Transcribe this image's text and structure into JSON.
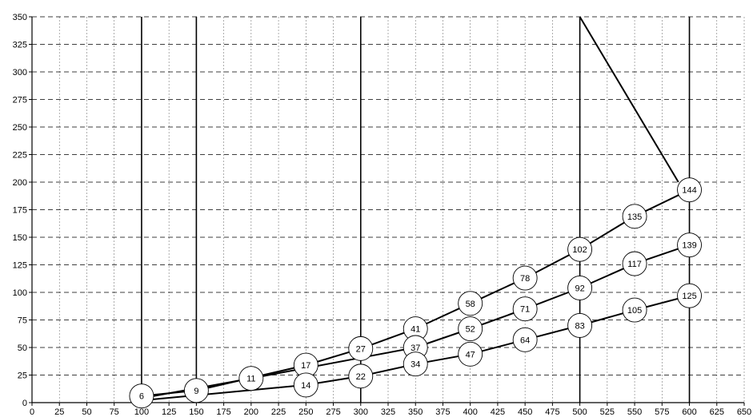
{
  "chart_data": {
    "type": "line",
    "title": "",
    "xlabel": "",
    "ylabel": "",
    "xlim": [
      0,
      650
    ],
    "ylim": [
      0,
      350
    ],
    "x_ticks": [
      0,
      25,
      50,
      75,
      100,
      125,
      150,
      175,
      200,
      225,
      250,
      275,
      300,
      325,
      350,
      375,
      400,
      425,
      450,
      475,
      500,
      525,
      550,
      575,
      600,
      625,
      650
    ],
    "y_ticks": [
      0,
      25,
      50,
      75,
      100,
      125,
      150,
      175,
      200,
      225,
      250,
      275,
      300,
      325,
      350
    ],
    "vertical_lines": [
      100,
      150,
      300,
      500,
      600
    ],
    "grid": true,
    "legend": "none",
    "colors": {
      "line": "#000000",
      "bubble_fill": "#ffffff",
      "grid_major": "#000000",
      "grid_minor": "#777777"
    },
    "series": [
      {
        "points": [
          {
            "x": 100,
            "y": 6,
            "label": "6"
          },
          {
            "x": 150,
            "y": 11,
            "label": "9"
          },
          {
            "x": 250,
            "y": 34,
            "label": "17"
          },
          {
            "x": 300,
            "y": 49,
            "label": "27"
          },
          {
            "x": 350,
            "y": 67,
            "label": "41"
          },
          {
            "x": 400,
            "y": 90,
            "label": "58"
          },
          {
            "x": 450,
            "y": 113,
            "label": "78"
          },
          {
            "x": 500,
            "y": 139,
            "label": "102"
          },
          {
            "x": 550,
            "y": 169,
            "label": "135"
          },
          {
            "x": 600,
            "y": 193,
            "label": "144"
          }
        ]
      },
      {
        "points": [
          {
            "x": 100,
            "y": 4,
            "label": "6"
          },
          {
            "x": 200,
            "y": 22,
            "label": "11"
          },
          {
            "x": 350,
            "y": 50,
            "label": "37"
          },
          {
            "x": 400,
            "y": 67,
            "label": "52"
          },
          {
            "x": 450,
            "y": 85,
            "label": "71"
          },
          {
            "x": 500,
            "y": 104,
            "label": "92"
          },
          {
            "x": 550,
            "y": 126,
            "label": "117"
          },
          {
            "x": 600,
            "y": 143,
            "label": "139"
          }
        ]
      },
      {
        "points": [
          {
            "x": 100,
            "y": 2,
            "label": "6"
          },
          {
            "x": 250,
            "y": 16,
            "label": "14"
          },
          {
            "x": 300,
            "y": 24,
            "label": "22"
          },
          {
            "x": 350,
            "y": 35,
            "label": "34"
          },
          {
            "x": 400,
            "y": 44,
            "label": "47"
          },
          {
            "x": 450,
            "y": 57,
            "label": "64"
          },
          {
            "x": 500,
            "y": 70,
            "label": "83"
          },
          {
            "x": 550,
            "y": 84,
            "label": "105"
          },
          {
            "x": 600,
            "y": 97,
            "label": "125"
          }
        ]
      },
      {
        "points": [
          {
            "x": 500,
            "y": 350
          },
          {
            "x": 590,
            "y": 200
          }
        ]
      }
    ],
    "bubbles": [
      {
        "x": 100,
        "y": 6,
        "label": "6"
      },
      {
        "x": 150,
        "y": 11,
        "label": "9"
      },
      {
        "x": 200,
        "y": 22,
        "label": "11"
      },
      {
        "x": 250,
        "y": 34,
        "label": "17"
      },
      {
        "x": 250,
        "y": 16,
        "label": "14"
      },
      {
        "x": 300,
        "y": 49,
        "label": "27"
      },
      {
        "x": 300,
        "y": 24,
        "label": "22"
      },
      {
        "x": 350,
        "y": 67,
        "label": "41"
      },
      {
        "x": 350,
        "y": 50,
        "label": "37"
      },
      {
        "x": 350,
        "y": 35,
        "label": "34"
      },
      {
        "x": 400,
        "y": 90,
        "label": "58"
      },
      {
        "x": 400,
        "y": 67,
        "label": "52"
      },
      {
        "x": 400,
        "y": 44,
        "label": "47"
      },
      {
        "x": 450,
        "y": 113,
        "label": "78"
      },
      {
        "x": 450,
        "y": 85,
        "label": "71"
      },
      {
        "x": 450,
        "y": 57,
        "label": "64"
      },
      {
        "x": 500,
        "y": 139,
        "label": "102"
      },
      {
        "x": 500,
        "y": 104,
        "label": "92"
      },
      {
        "x": 500,
        "y": 70,
        "label": "83"
      },
      {
        "x": 550,
        "y": 169,
        "label": "135"
      },
      {
        "x": 550,
        "y": 126,
        "label": "117"
      },
      {
        "x": 550,
        "y": 84,
        "label": "105"
      },
      {
        "x": 600,
        "y": 193,
        "label": "144"
      },
      {
        "x": 600,
        "y": 143,
        "label": "139"
      },
      {
        "x": 600,
        "y": 97,
        "label": "125"
      }
    ]
  }
}
